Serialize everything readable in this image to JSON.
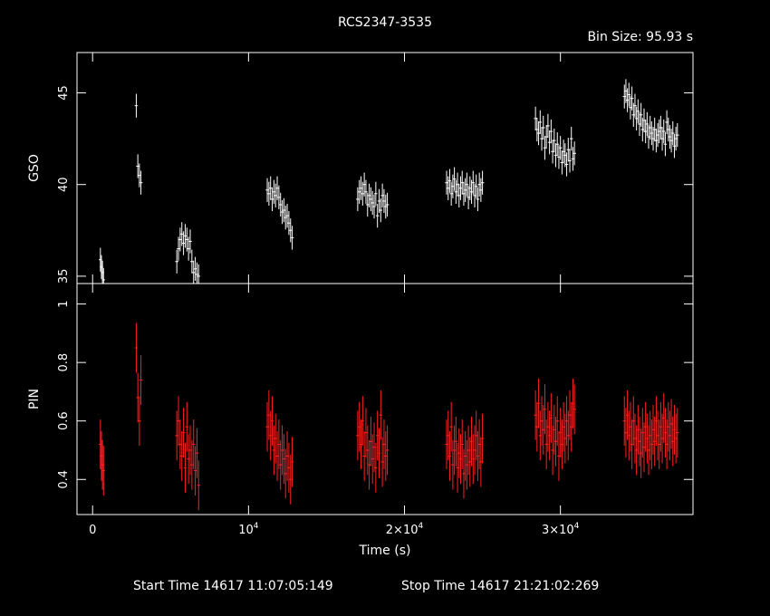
{
  "chart_data": {
    "type": "scatter",
    "title": "RCS2347-3535",
    "subtitle": "Bin Size: 95.93 s",
    "xlabel": "Time (s)",
    "xlim": [
      -1000,
      38500
    ],
    "x_ticks": [
      {
        "value": 0,
        "label": "0"
      },
      {
        "value": 10000,
        "label": "10",
        "sup": "4"
      },
      {
        "value": 20000,
        "label": "2×10",
        "sup": "4"
      },
      {
        "value": 30000,
        "label": "3×10",
        "sup": "4"
      }
    ],
    "footer": {
      "start": "Start Time 14617 11:07:05:149",
      "stop": "Stop Time 14617 21:21:02:269"
    },
    "panels": [
      {
        "name": "GSO",
        "ylabel": "GSO",
        "color": "#ffffff",
        "ylim": [
          34.6,
          47.2
        ],
        "y_ticks": [
          35,
          40,
          45
        ],
        "error": 0.65,
        "segments": [
          {
            "x0": 500,
            "x1": 700,
            "values": [
              35.9,
              35.5,
              35.2,
              34.8
            ]
          },
          {
            "x0": 2800,
            "x1": 3100,
            "values": [
              44.3,
              41.0,
              40.5,
              40.1
            ]
          },
          {
            "x0": 5400,
            "x1": 6800,
            "values": [
              35.8,
              36.5,
              37.0,
              37.3,
              36.8,
              37.2,
              37.0,
              36.5,
              36.9,
              35.8,
              35.2,
              35.4,
              35.1,
              35.0
            ]
          },
          {
            "x0": 11200,
            "x1": 12800,
            "values": [
              39.7,
              39.5,
              39.8,
              39.2,
              39.6,
              39.4,
              39.8,
              39.3,
              38.9,
              38.5,
              38.6,
              38.2,
              38.3,
              37.9,
              37.5,
              37.1
            ]
          },
          {
            "x0": 17000,
            "x1": 18900,
            "values": [
              39.2,
              39.6,
              39.8,
              39.5,
              40.0,
              39.6,
              38.9,
              39.4,
              39.2,
              39.0,
              38.8,
              39.5,
              38.3,
              39.1,
              38.6,
              39.4,
              39.1,
              38.8,
              38.9
            ]
          },
          {
            "x0": 22700,
            "x1": 25000,
            "values": [
              40.1,
              39.8,
              40.2,
              39.5,
              39.9,
              40.3,
              39.6,
              40.0,
              39.4,
              39.8,
              40.1,
              39.5,
              39.7,
              40.0,
              39.3,
              39.8,
              39.6,
              40.1,
              39.4,
              39.9,
              39.2,
              40.0,
              39.7,
              40.1
            ]
          },
          {
            "x0": 28400,
            "x1": 30900,
            "values": [
              43.6,
              43.0,
              42.8,
              43.4,
              42.5,
              43.1,
              42.0,
              42.6,
              43.2,
              42.3,
              42.9,
              41.8,
              42.4,
              41.6,
              42.2,
              41.5,
              42.0,
              41.2,
              41.8,
              41.6,
              41.1,
              41.9,
              41.3,
              42.5,
              41.4,
              41.7
            ]
          },
          {
            "x0": 34100,
            "x1": 37500,
            "values": [
              44.8,
              45.1,
              44.6,
              44.9,
              44.2,
              44.7,
              43.8,
              44.3,
              43.6,
              44.0,
              43.3,
              43.8,
              43.0,
              43.5,
              42.9,
              43.3,
              42.6,
              43.1,
              42.8,
              42.5,
              43.0,
              42.4,
              42.7,
              42.9,
              43.1,
              42.5,
              42.9,
              42.2,
              43.4,
              43.0,
              42.6,
              42.4,
              42.8,
              42.1,
              42.5,
              42.7
            ]
          }
        ]
      },
      {
        "name": "PIN",
        "ylabel": "PIN",
        "color": "#ff2020",
        "ylim": [
          0.28,
          1.07
        ],
        "y_ticks": [
          0.4,
          0.6,
          0.8,
          1
        ],
        "y_tick_labels": [
          "0.4",
          "0.6",
          "0.8",
          "1"
        ],
        "error": 0.085,
        "segments": [
          {
            "x0": 500,
            "x1": 700,
            "values": [
              0.52,
              0.48,
              0.45,
              0.43
            ]
          },
          {
            "x0": 2800,
            "x1": 3100,
            "values": [
              0.85,
              0.68,
              0.6,
              0.74
            ]
          },
          {
            "x0": 5400,
            "x1": 6800,
            "values": [
              0.55,
              0.6,
              0.52,
              0.48,
              0.56,
              0.44,
              0.58,
              0.47,
              0.5,
              0.45,
              0.52,
              0.43,
              0.49,
              0.38
            ]
          },
          {
            "x0": 11200,
            "x1": 12800,
            "values": [
              0.58,
              0.62,
              0.55,
              0.6,
              0.5,
              0.54,
              0.48,
              0.52,
              0.45,
              0.5,
              0.47,
              0.42,
              0.48,
              0.44,
              0.4,
              0.46
            ]
          },
          {
            "x0": 17000,
            "x1": 18900,
            "values": [
              0.55,
              0.58,
              0.52,
              0.6,
              0.48,
              0.56,
              0.5,
              0.45,
              0.53,
              0.47,
              0.51,
              0.44,
              0.55,
              0.49,
              0.62,
              0.46,
              0.52,
              0.48,
              0.5
            ]
          },
          {
            "x0": 22700,
            "x1": 25000,
            "values": [
              0.52,
              0.55,
              0.48,
              0.58,
              0.45,
              0.5,
              0.53,
              0.44,
              0.49,
              0.47,
              0.52,
              0.42,
              0.48,
              0.45,
              0.5,
              0.46,
              0.53,
              0.47,
              0.5,
              0.55,
              0.48,
              0.52,
              0.46,
              0.54
            ]
          },
          {
            "x0": 28400,
            "x1": 30900,
            "values": [
              0.62,
              0.58,
              0.66,
              0.55,
              0.6,
              0.57,
              0.64,
              0.52,
              0.58,
              0.55,
              0.61,
              0.5,
              0.57,
              0.53,
              0.6,
              0.48,
              0.56,
              0.52,
              0.58,
              0.54,
              0.6,
              0.55,
              0.62,
              0.58,
              0.66,
              0.64
            ]
          },
          {
            "x0": 34100,
            "x1": 37500,
            "values": [
              0.6,
              0.56,
              0.62,
              0.55,
              0.58,
              0.52,
              0.6,
              0.54,
              0.5,
              0.57,
              0.53,
              0.49,
              0.56,
              0.51,
              0.58,
              0.54,
              0.5,
              0.55,
              0.52,
              0.57,
              0.53,
              0.6,
              0.55,
              0.52,
              0.58,
              0.54,
              0.61,
              0.56,
              0.52,
              0.58,
              0.55,
              0.59,
              0.53,
              0.57,
              0.54,
              0.56
            ]
          }
        ]
      }
    ]
  }
}
